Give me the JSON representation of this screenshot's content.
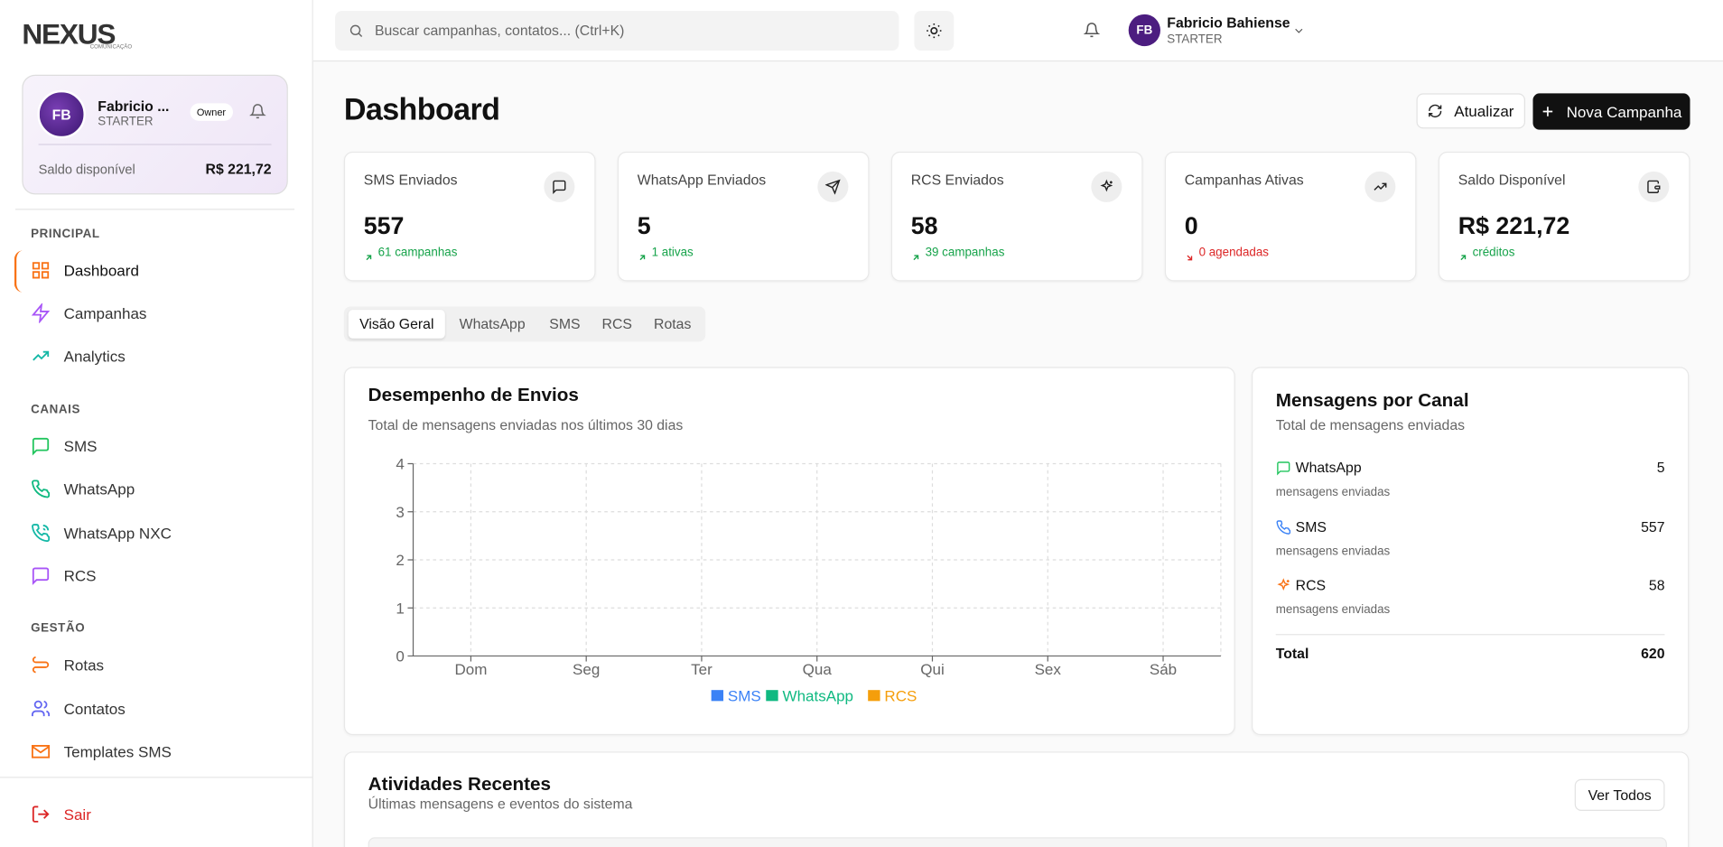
{
  "sidebar": {
    "logo": "NEXUS",
    "logo_sub": "COMUNICAÇÃO",
    "user": {
      "initials": "FB",
      "name": "Fabricio ...",
      "plan": "STARTER",
      "role": "Owner",
      "balance_label": "Saldo disponível",
      "balance": "R$ 221,72"
    },
    "sections": [
      {
        "title": "PRINCIPAL",
        "items": [
          "Dashboard",
          "Campanhas",
          "Analytics"
        ]
      },
      {
        "title": "CANAIS",
        "items": [
          "SMS",
          "WhatsApp",
          "WhatsApp NXC",
          "RCS"
        ]
      },
      {
        "title": "GESTÃO",
        "items": [
          "Rotas",
          "Contatos",
          "Templates SMS"
        ]
      }
    ],
    "logout": "Sair"
  },
  "header": {
    "search_placeholder": "Buscar campanhas, contatos... (Ctrl+K)",
    "user": {
      "initials": "FB",
      "name": "Fabricio Bahiense",
      "plan": "STARTER"
    }
  },
  "page": {
    "title": "Dashboard",
    "buttons": [
      "Atualizar",
      "Nova Campanha"
    ]
  },
  "cards": [
    {
      "label": "SMS Enviados",
      "value": 557,
      "note": "61 campanhas"
    },
    {
      "label": "WhatsApp Enviados",
      "value": 5,
      "note": "1 ativas"
    },
    {
      "label": "RCS Enviados",
      "value": 58,
      "note": "39 campanhas"
    },
    {
      "label": "Campanhas Ativas",
      "value": 0,
      "note": "0 agendadas"
    },
    {
      "label": "Saldo Disponível",
      "value": "R$ 221,72",
      "note": "créditos"
    }
  ],
  "tabs": [
    "Visão Geral",
    "WhatsApp",
    "SMS",
    "RCS",
    "Rotas"
  ],
  "chart_data": {
    "type": "bar",
    "title": "Desempenho de Envios",
    "subtitle": "Total de mensagens enviadas nos últimos 30 dias",
    "categories": [
      "Dom",
      "Seg",
      "Ter",
      "Qua",
      "Qui",
      "Sex",
      "Sáb"
    ],
    "series": [
      {
        "name": "SMS",
        "color": "#3b82f6",
        "values": [
          0,
          0,
          0,
          0,
          0,
          0,
          0
        ]
      },
      {
        "name": "WhatsApp",
        "color": "#10b981",
        "values": [
          0,
          0,
          0,
          0,
          0,
          0,
          0
        ]
      },
      {
        "name": "RCS",
        "color": "#f59e0b",
        "values": [
          0,
          0,
          0,
          0,
          0,
          0,
          0
        ]
      }
    ],
    "ylim": [
      0,
      4
    ],
    "yticks": [
      0,
      1,
      2,
      3,
      4
    ],
    "grid": true,
    "legend": "bottom"
  },
  "channels": {
    "title": "Mensagens por Canal",
    "subtitle": "Total de mensagens enviadas",
    "items": [
      {
        "name": "WhatsApp",
        "value": 5,
        "note": "mensagens enviadas"
      },
      {
        "name": "SMS",
        "value": 557,
        "note": "mensagens enviadas"
      },
      {
        "name": "RCS",
        "value": 58,
        "note": "mensagens enviadas"
      }
    ],
    "total_label": "Total",
    "total": 620
  },
  "activities": {
    "title": "Atividades Recentes",
    "subtitle": "Últimas mensagens e eventos do sistema",
    "button": "Ver Todos"
  }
}
